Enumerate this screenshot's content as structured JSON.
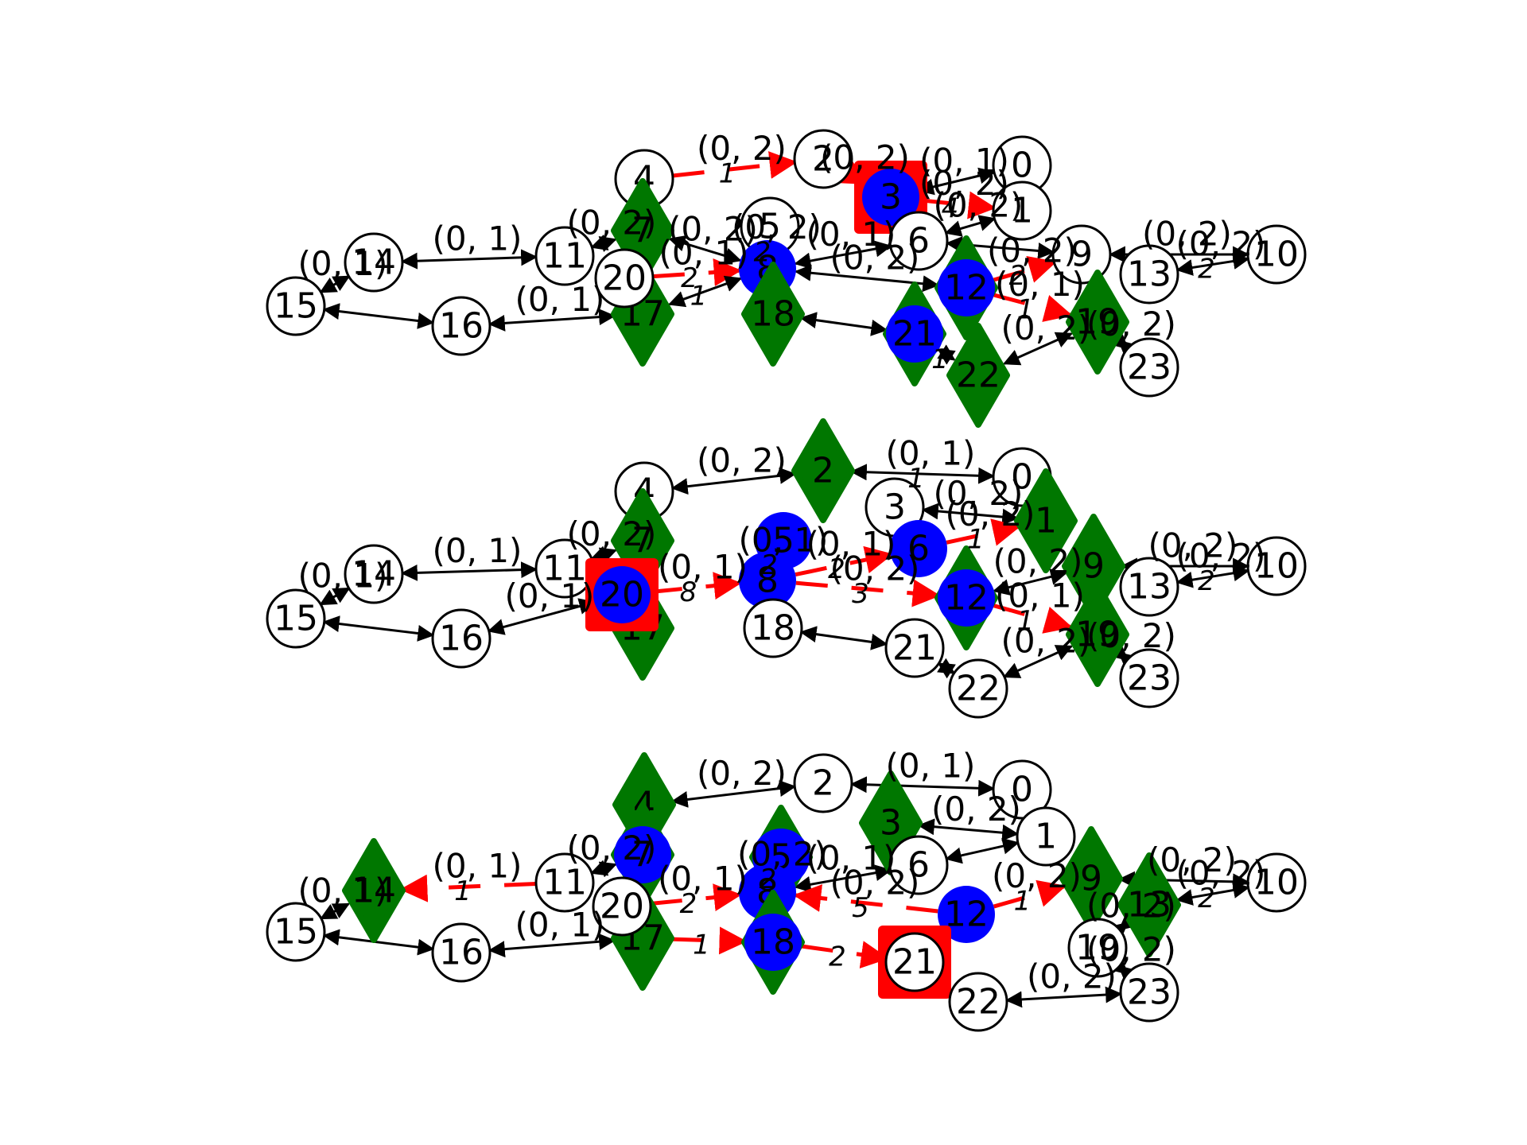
{
  "colors": {
    "edge_default": "#000000",
    "edge_highlight": "#ff0000",
    "node_outline": "#000000",
    "node_fill_default": "#ffffff",
    "node_fill_blue": "#0000ff",
    "node_fill_green": "#007700",
    "node_fill_red": "#ff0000"
  },
  "panels": [
    {
      "nodes": [
        {
          "id": "0",
          "shape": "circle",
          "fill": "white"
        },
        {
          "id": "1",
          "shape": "circle",
          "fill": "white"
        },
        {
          "id": "2",
          "shape": "circle",
          "fill": "white"
        },
        {
          "id": "3",
          "shape": "circle",
          "fill": "blue",
          "marker": "square"
        },
        {
          "id": "4",
          "shape": "circle",
          "fill": "white"
        },
        {
          "id": "5",
          "shape": "circle",
          "fill": "white"
        },
        {
          "id": "6",
          "shape": "circle",
          "fill": "white"
        },
        {
          "id": "7",
          "shape": "diamond",
          "fill": "green"
        },
        {
          "id": "8",
          "shape": "circle",
          "fill": "blue"
        },
        {
          "id": "9",
          "shape": "circle",
          "fill": "white"
        },
        {
          "id": "10",
          "shape": "circle",
          "fill": "white"
        },
        {
          "id": "11",
          "shape": "circle",
          "fill": "white"
        },
        {
          "id": "12",
          "shape": "diamond",
          "fill": "green",
          "overlay": "blue"
        },
        {
          "id": "13",
          "shape": "circle",
          "fill": "white"
        },
        {
          "id": "14",
          "shape": "circle",
          "fill": "white"
        },
        {
          "id": "15",
          "shape": "circle",
          "fill": "white"
        },
        {
          "id": "16",
          "shape": "circle",
          "fill": "white"
        },
        {
          "id": "17",
          "shape": "diamond",
          "fill": "green"
        },
        {
          "id": "18",
          "shape": "diamond",
          "fill": "green"
        },
        {
          "id": "19",
          "shape": "diamond",
          "fill": "green"
        },
        {
          "id": "20",
          "shape": "circle",
          "fill": "white"
        },
        {
          "id": "21",
          "shape": "diamond",
          "fill": "green",
          "overlay": "blue"
        },
        {
          "id": "22",
          "shape": "diamond",
          "fill": "green"
        },
        {
          "id": "23",
          "shape": "circle",
          "fill": "white"
        }
      ],
      "edges": [
        {
          "from": "4",
          "to": "2",
          "label": "(0, 2)",
          "color": "red",
          "weight": "1"
        },
        {
          "from": "2",
          "to": "3",
          "label": "(0, 2)",
          "color": "red"
        },
        {
          "from": "3",
          "to": "0",
          "label": "(0, 1)",
          "color": "black"
        },
        {
          "from": "3",
          "to": "1",
          "label": "(0, 2)",
          "color": "red",
          "weight": "4"
        },
        {
          "from": "1",
          "to": "6",
          "label": "(0, 2)",
          "color": "black"
        },
        {
          "from": "7",
          "to": "8",
          "label": "(0, 2)",
          "color": "black"
        },
        {
          "from": "11",
          "to": "14",
          "label": "(0, 1)",
          "color": "black"
        },
        {
          "from": "11",
          "to": "7",
          "label": "(0, 2)",
          "color": "black"
        },
        {
          "from": "15",
          "to": "14",
          "label": "(0, 1)",
          "color": "black"
        },
        {
          "from": "15",
          "to": "16",
          "label": "",
          "color": "black"
        },
        {
          "from": "16",
          "to": "17",
          "label": "(0, 1)",
          "color": "black"
        },
        {
          "from": "20",
          "to": "8",
          "label": "(0, 1)",
          "color": "red",
          "weight": "2"
        },
        {
          "from": "17",
          "to": "8",
          "label": "",
          "color": "black",
          "weight": "1"
        },
        {
          "from": "5",
          "to": "8",
          "label": "(0, 2)",
          "color": "black",
          "weight": "2"
        },
        {
          "from": "8",
          "to": "6",
          "label": "(0, 1)",
          "color": "black"
        },
        {
          "from": "8",
          "to": "12",
          "label": "(0, 2)",
          "color": "black"
        },
        {
          "from": "6",
          "to": "9",
          "label": "",
          "color": "black"
        },
        {
          "from": "12",
          "to": "9",
          "label": "(0, 2)",
          "color": "red",
          "weight": "2"
        },
        {
          "from": "9",
          "to": "10",
          "label": "(0, 2)",
          "color": "black"
        },
        {
          "from": "13",
          "to": "10",
          "label": "(0, 2)",
          "color": "black",
          "weight": "2"
        },
        {
          "from": "12",
          "to": "19",
          "label": "(0, 1)",
          "color": "red",
          "weight": "1"
        },
        {
          "from": "18",
          "to": "21",
          "label": "",
          "color": "black"
        },
        {
          "from": "21",
          "to": "22",
          "label": "",
          "color": "black",
          "weight": "1"
        },
        {
          "from": "19",
          "to": "22",
          "label": "(0, 2)",
          "color": "black"
        },
        {
          "from": "19",
          "to": "23",
          "label": "(0, 2)",
          "color": "black"
        }
      ]
    },
    {
      "nodes": [
        {
          "id": "0",
          "shape": "circle",
          "fill": "white"
        },
        {
          "id": "1",
          "shape": "diamond",
          "fill": "green"
        },
        {
          "id": "2",
          "shape": "diamond",
          "fill": "green"
        },
        {
          "id": "3",
          "shape": "circle",
          "fill": "white"
        },
        {
          "id": "4",
          "shape": "circle",
          "fill": "white"
        },
        {
          "id": "5",
          "shape": "circle",
          "fill": "blue"
        },
        {
          "id": "6",
          "shape": "circle",
          "fill": "blue"
        },
        {
          "id": "7",
          "shape": "diamond",
          "fill": "green"
        },
        {
          "id": "8",
          "shape": "circle",
          "fill": "blue"
        },
        {
          "id": "9",
          "shape": "diamond",
          "fill": "green"
        },
        {
          "id": "10",
          "shape": "circle",
          "fill": "white"
        },
        {
          "id": "11",
          "shape": "circle",
          "fill": "white"
        },
        {
          "id": "12",
          "shape": "diamond",
          "fill": "green",
          "overlay": "blue"
        },
        {
          "id": "13",
          "shape": "circle",
          "fill": "white"
        },
        {
          "id": "14",
          "shape": "circle",
          "fill": "white"
        },
        {
          "id": "15",
          "shape": "circle",
          "fill": "white"
        },
        {
          "id": "16",
          "shape": "circle",
          "fill": "white"
        },
        {
          "id": "17",
          "shape": "diamond",
          "fill": "green"
        },
        {
          "id": "18",
          "shape": "circle",
          "fill": "white"
        },
        {
          "id": "19",
          "shape": "diamond",
          "fill": "green"
        },
        {
          "id": "20",
          "shape": "circle",
          "fill": "blue",
          "marker": "square"
        },
        {
          "id": "21",
          "shape": "circle",
          "fill": "white"
        },
        {
          "id": "22",
          "shape": "circle",
          "fill": "white"
        },
        {
          "id": "23",
          "shape": "circle",
          "fill": "white"
        }
      ],
      "edges": [
        {
          "from": "4",
          "to": "2",
          "label": "(0, 2)",
          "color": "black"
        },
        {
          "from": "2",
          "to": "0",
          "label": "(0, 1)",
          "color": "black",
          "weight": "1"
        },
        {
          "from": "3",
          "to": "1",
          "label": "(0, 2)",
          "color": "black"
        },
        {
          "from": "6",
          "to": "1",
          "label": "(0, 2)",
          "color": "red",
          "weight": "1"
        },
        {
          "from": "5",
          "to": "8",
          "label": "(0, 1)",
          "color": "black",
          "weight": "2"
        },
        {
          "from": "11",
          "to": "14",
          "label": "(0, 1)",
          "color": "black"
        },
        {
          "from": "11",
          "to": "7",
          "label": "(0, 2)",
          "color": "black"
        },
        {
          "from": "15",
          "to": "14",
          "label": "(0, 1)",
          "color": "black"
        },
        {
          "from": "15",
          "to": "16",
          "label": "",
          "color": "black"
        },
        {
          "from": "20",
          "to": "16",
          "label": "(0, 1)",
          "color": "black"
        },
        {
          "from": "20",
          "to": "8",
          "label": "(0, 1)",
          "color": "red",
          "weight": "8"
        },
        {
          "from": "8",
          "to": "6",
          "label": "(0, 1)",
          "color": "red",
          "weight": "2"
        },
        {
          "from": "8",
          "to": "12",
          "label": "(0, 2)",
          "color": "red",
          "weight": "3"
        },
        {
          "from": "12",
          "to": "9",
          "label": "(0, 2)",
          "color": "black"
        },
        {
          "from": "9",
          "to": "10",
          "label": "(0, 2)",
          "color": "black"
        },
        {
          "from": "13",
          "to": "10",
          "label": "(0, 2)",
          "color": "black",
          "weight": "2"
        },
        {
          "from": "12",
          "to": "19",
          "label": "(0, 1)",
          "color": "red",
          "weight": "1"
        },
        {
          "from": "18",
          "to": "21",
          "label": "",
          "color": "black"
        },
        {
          "from": "21",
          "to": "22",
          "label": "",
          "color": "black"
        },
        {
          "from": "19",
          "to": "22",
          "label": "(0, 2)",
          "color": "black"
        },
        {
          "from": "19",
          "to": "23",
          "label": "(0, 2)",
          "color": "black"
        }
      ]
    },
    {
      "nodes": [
        {
          "id": "0",
          "shape": "circle",
          "fill": "white"
        },
        {
          "id": "1",
          "shape": "circle",
          "fill": "white"
        },
        {
          "id": "2",
          "shape": "circle",
          "fill": "white"
        },
        {
          "id": "3",
          "shape": "diamond",
          "fill": "green"
        },
        {
          "id": "4",
          "shape": "diamond",
          "fill": "green"
        },
        {
          "id": "5",
          "shape": "diamond",
          "fill": "green",
          "overlay": "blue"
        },
        {
          "id": "6",
          "shape": "circle",
          "fill": "white"
        },
        {
          "id": "7",
          "shape": "diamond",
          "fill": "green",
          "overlay": "blue"
        },
        {
          "id": "8",
          "shape": "circle",
          "fill": "blue"
        },
        {
          "id": "9",
          "shape": "diamond",
          "fill": "green"
        },
        {
          "id": "10",
          "shape": "circle",
          "fill": "white"
        },
        {
          "id": "11",
          "shape": "circle",
          "fill": "white"
        },
        {
          "id": "12",
          "shape": "circle",
          "fill": "blue"
        },
        {
          "id": "13",
          "shape": "diamond",
          "fill": "green"
        },
        {
          "id": "14",
          "shape": "diamond",
          "fill": "green"
        },
        {
          "id": "15",
          "shape": "circle",
          "fill": "white"
        },
        {
          "id": "16",
          "shape": "circle",
          "fill": "white"
        },
        {
          "id": "17",
          "shape": "diamond",
          "fill": "green"
        },
        {
          "id": "18",
          "shape": "diamond",
          "fill": "green",
          "overlay": "blue"
        },
        {
          "id": "19",
          "shape": "circle",
          "fill": "white"
        },
        {
          "id": "20",
          "shape": "circle",
          "fill": "white"
        },
        {
          "id": "21",
          "shape": "circle",
          "fill": "white",
          "marker": "square"
        },
        {
          "id": "22",
          "shape": "circle",
          "fill": "white"
        },
        {
          "id": "23",
          "shape": "circle",
          "fill": "white"
        }
      ],
      "edges": [
        {
          "from": "4",
          "to": "2",
          "label": "(0, 2)",
          "color": "black"
        },
        {
          "from": "2",
          "to": "0",
          "label": "(0, 1)",
          "color": "black"
        },
        {
          "from": "3",
          "to": "1",
          "label": "(0, 2)",
          "color": "black"
        },
        {
          "from": "1",
          "to": "6",
          "label": "",
          "color": "black"
        },
        {
          "from": "11",
          "to": "14",
          "label": "(0, 1)",
          "color": "red",
          "weight": "1"
        },
        {
          "from": "11",
          "to": "7",
          "label": "(0, 2)",
          "color": "black"
        },
        {
          "from": "15",
          "to": "14",
          "label": "(0, 1)",
          "color": "black"
        },
        {
          "from": "15",
          "to": "16",
          "label": "",
          "color": "black"
        },
        {
          "from": "16",
          "to": "17",
          "label": "(0, 1)",
          "color": "black"
        },
        {
          "from": "20",
          "to": "8",
          "label": "(0, 1)",
          "color": "red",
          "weight": "2"
        },
        {
          "from": "17",
          "to": "18",
          "label": "",
          "color": "red",
          "weight": "1"
        },
        {
          "from": "5",
          "to": "8",
          "label": "(0, 2)",
          "color": "black",
          "weight": "2"
        },
        {
          "from": "8",
          "to": "6",
          "label": "(0, 1)",
          "color": "black"
        },
        {
          "from": "12",
          "to": "8",
          "label": "(0, 2)",
          "color": "red",
          "weight": "5"
        },
        {
          "from": "18",
          "to": "21",
          "label": "",
          "color": "red",
          "weight": "2"
        },
        {
          "from": "9",
          "to": "10",
          "label": "(0, 2)",
          "color": "black"
        },
        {
          "from": "13",
          "to": "10",
          "label": "(0, 2)",
          "color": "black",
          "weight": "2"
        },
        {
          "from": "12",
          "to": "9",
          "label": "(0, 2)",
          "color": "red",
          "weight": "1"
        },
        {
          "from": "13",
          "to": "19",
          "label": "(0, 2)",
          "color": "black"
        },
        {
          "from": "22",
          "to": "23",
          "label": "(0, 2)",
          "color": "black"
        },
        {
          "from": "19",
          "to": "23",
          "label": "(0, 2)",
          "color": "black"
        }
      ]
    }
  ]
}
